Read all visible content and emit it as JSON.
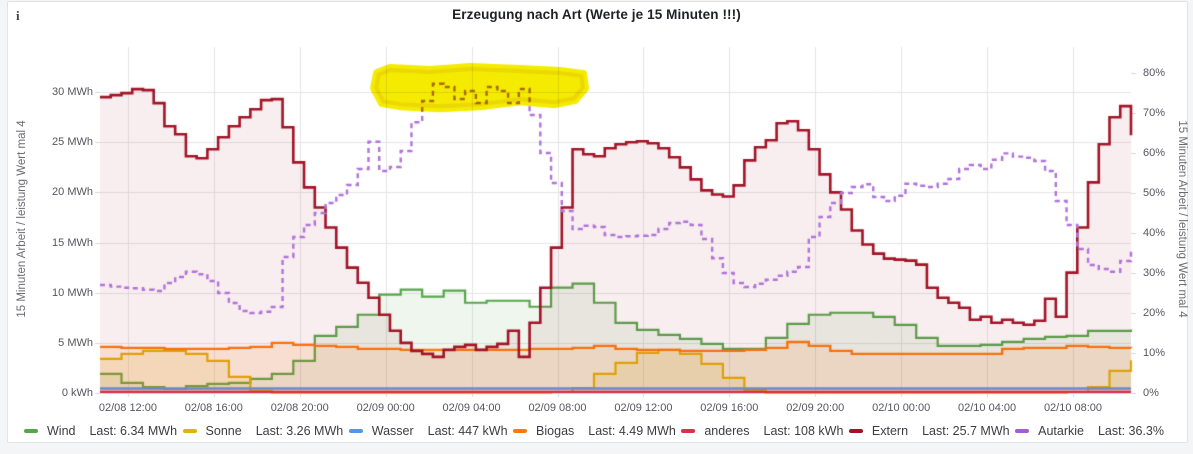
{
  "panel": {
    "title": "Erzeugung nach Art (Werte je 15 Minuten !!!)",
    "info_icon": "i"
  },
  "chart_data": {
    "type": "line",
    "title": "Erzeugung nach Art (Werte je 15 Minuten !!!)",
    "grid": true,
    "x_axis": {
      "range_hours": 48,
      "start": "02/08 10:30",
      "end": "02/10 10:30",
      "ticks": [
        {
          "label": "02/08 12:00",
          "t": 1.3
        },
        {
          "label": "02/08 16:00",
          "t": 5.3
        },
        {
          "label": "02/08 20:00",
          "t": 9.3
        },
        {
          "label": "02/09 00:00",
          "t": 13.3
        },
        {
          "label": "02/09 04:00",
          "t": 17.3
        },
        {
          "label": "02/09 08:00",
          "t": 21.3
        },
        {
          "label": "02/09 12:00",
          "t": 25.3
        },
        {
          "label": "02/09 16:00",
          "t": 29.3
        },
        {
          "label": "02/09 20:00",
          "t": 33.3
        },
        {
          "label": "02/10 00:00",
          "t": 37.3
        },
        {
          "label": "02/10 04:00",
          "t": 41.3
        },
        {
          "label": "02/10 08:00",
          "t": 45.3
        }
      ]
    },
    "left_axis": {
      "label": "15 Minuten Arbeit / leistung Wert mal 4",
      "unit": "MWh",
      "max": 34.5,
      "ticks": [
        {
          "label": "0 kWh",
          "value": 0
        },
        {
          "label": "5 MWh",
          "value": 5
        },
        {
          "label": "10 MWh",
          "value": 10
        },
        {
          "label": "15 MWh",
          "value": 15
        },
        {
          "label": "20 MWh",
          "value": 20
        },
        {
          "label": "25 MWh",
          "value": 25
        },
        {
          "label": "30 MWh",
          "value": 30
        }
      ]
    },
    "right_axis": {
      "label": "15 Minuten Arbeit / leistung Wert mal 4",
      "unit": "%",
      "max": 86.5,
      "ticks": [
        {
          "label": "0%",
          "value": 0
        },
        {
          "label": "10%",
          "value": 10
        },
        {
          "label": "20%",
          "value": 20
        },
        {
          "label": "30%",
          "value": 30
        },
        {
          "label": "40%",
          "value": 40
        },
        {
          "label": "50%",
          "value": 50
        },
        {
          "label": "60%",
          "value": 60
        },
        {
          "label": "70%",
          "value": 70
        },
        {
          "label": "80%",
          "value": 80
        }
      ]
    },
    "series": [
      {
        "name": "Wind",
        "axis": "left",
        "color": "#56A64B",
        "fill_color": "rgba(86,166,75,0.10)",
        "width": 2.2,
        "step_hours": 1,
        "values": [
          1.9,
          1.0,
          0.6,
          0.4,
          0.7,
          0.9,
          1.0,
          1.4,
          1.9,
          3.2,
          5.7,
          6.6,
          7.8,
          9.8,
          10.3,
          9.6,
          10.2,
          9.0,
          9.2,
          9.2,
          8.6,
          10.5,
          10.9,
          9.0,
          7.0,
          6.3,
          5.8,
          5.4,
          4.9,
          4.4,
          4.4,
          5.5,
          6.9,
          7.8,
          8.0,
          8.0,
          7.6,
          6.8,
          5.5,
          4.7,
          4.7,
          4.8,
          5.1,
          5.4,
          5.6,
          5.7,
          6.2,
          6.2,
          6.34
        ]
      },
      {
        "name": "Sonne",
        "axis": "left",
        "color": "#E0B400",
        "fill_color": "rgba(224,180,0,0.12)",
        "width": 2.2,
        "step_hours": 1,
        "values": [
          3.4,
          3.9,
          4.2,
          4.2,
          3.9,
          3.2,
          1.6,
          0.2,
          0,
          0,
          0,
          0,
          0,
          0,
          0,
          0,
          0,
          0,
          0,
          0,
          0,
          0.1,
          0.5,
          1.9,
          3.0,
          4.0,
          4.3,
          3.9,
          2.9,
          1.5,
          0.3,
          0,
          0,
          0,
          0,
          0,
          0,
          0,
          0,
          0,
          0,
          0,
          0,
          0,
          0,
          0.1,
          0.6,
          2.2,
          3.26
        ]
      },
      {
        "name": "Wasser",
        "axis": "left",
        "color": "#5794F2",
        "fill_color": "rgba(87,148,242,0.10)",
        "width": 2.4,
        "step_hours": 48,
        "values": [
          0.45,
          0.45
        ]
      },
      {
        "name": "Biogas",
        "axis": "left",
        "color": "#FF780A",
        "fill_color": "rgba(255,120,10,0.13)",
        "width": 2.4,
        "step_hours": 1,
        "values": [
          4.6,
          4.5,
          4.5,
          4.4,
          4.4,
          4.4,
          4.5,
          4.6,
          5.0,
          4.8,
          4.7,
          4.6,
          4.4,
          4.4,
          4.3,
          4.3,
          4.3,
          4.3,
          4.3,
          4.3,
          4.4,
          4.4,
          4.5,
          4.7,
          4.4,
          4.3,
          4.3,
          4.2,
          4.2,
          4.2,
          4.3,
          4.5,
          5.1,
          4.7,
          4.2,
          3.9,
          3.9,
          3.9,
          3.9,
          3.9,
          3.9,
          3.9,
          4.4,
          4.5,
          4.5,
          4.7,
          4.6,
          4.5,
          4.49
        ]
      },
      {
        "name": "anderes",
        "axis": "left",
        "color": "#E02F44",
        "fill_color": "rgba(224,47,68,0.10)",
        "width": 2.2,
        "step_hours": 48,
        "values": [
          0.11,
          0.11
        ]
      },
      {
        "name": "Extern",
        "axis": "left",
        "color": "#A11426",
        "fill_color": "rgba(161,20,38,0.075)",
        "width": 2.6,
        "step_hours": 0.5,
        "values": [
          29.5,
          29.7,
          29.9,
          30.3,
          30.2,
          28.9,
          26.6,
          25.8,
          23.6,
          23.4,
          24.3,
          25.5,
          26.6,
          27.5,
          28.3,
          29.2,
          29.3,
          26.5,
          23.0,
          20.5,
          18.5,
          16.5,
          14.5,
          12.5,
          11.0,
          9.5,
          7.8,
          6.2,
          5.0,
          4.2,
          3.9,
          3.6,
          4.3,
          4.6,
          4.8,
          4.3,
          4.6,
          4.9,
          6.2,
          3.6,
          7.0,
          10.5,
          14.5,
          18.5,
          24.3,
          23.8,
          23.6,
          24.4,
          24.8,
          25.0,
          25.1,
          24.9,
          24.4,
          23.5,
          22.5,
          21.3,
          20.2,
          19.8,
          19.6,
          20.7,
          23.2,
          24.5,
          25.2,
          26.9,
          27.1,
          26.2,
          24.3,
          21.8,
          20.0,
          18.3,
          16.2,
          14.8,
          13.9,
          13.4,
          13.3,
          13.2,
          12.8,
          10.5,
          9.5,
          9.0,
          8.5,
          7.3,
          7.6,
          7.0,
          7.3,
          7.0,
          6.8,
          7.2,
          9.4,
          7.6,
          12.0,
          16.5,
          21.0,
          24.8,
          27.5,
          28.6,
          25.7
        ]
      },
      {
        "name": "Autarkie",
        "axis": "right",
        "color": "#B073D9",
        "fill_color": null,
        "width": 2.4,
        "step_hours": 0.5,
        "dash": [
          5,
          4
        ],
        "values": [
          27.0,
          26.6,
          26.3,
          26.2,
          25.8,
          25.5,
          27.5,
          29.0,
          30.3,
          29.7,
          28.0,
          25.0,
          22.5,
          20.5,
          20.0,
          20.3,
          21.5,
          34.0,
          39.0,
          42.0,
          45.0,
          47.5,
          49.5,
          52.0,
          56.0,
          62.8,
          55.5,
          56.5,
          60.5,
          67.7,
          73.0,
          77.3,
          76.5,
          73.5,
          75.5,
          72.5,
          76.5,
          75.5,
          72.5,
          76.0,
          69.5,
          60.0,
          52.5,
          45.5,
          41.0,
          41.8,
          41.5,
          39.5,
          39.0,
          39.2,
          39.3,
          39.5,
          41.0,
          42.5,
          42.8,
          42.0,
          38.5,
          33.7,
          30.0,
          27.5,
          26.5,
          27.3,
          28.3,
          29.3,
          30.3,
          31.5,
          39.0,
          44.0,
          47.5,
          50.0,
          51.5,
          52.2,
          49.0,
          48.0,
          49.3,
          52.3,
          51.8,
          51.5,
          52.3,
          53.5,
          56.0,
          57.0,
          56.0,
          58.3,
          59.9,
          59.1,
          58.8,
          58.0,
          55.5,
          48.0,
          42.0,
          36.0,
          32.0,
          31.0,
          30.3,
          33.0,
          36.3
        ]
      }
    ],
    "highlight": {
      "name": "yellow-marker-annotation",
      "color": "#F5EB00",
      "points": [
        [
          12.76,
          30.4
        ],
        [
          12.9,
          31.9
        ],
        [
          13.5,
          32.4
        ],
        [
          15.36,
          32.2
        ],
        [
          17.22,
          32.5
        ],
        [
          19.55,
          32.3
        ],
        [
          21.41,
          32.1
        ],
        [
          22.49,
          31.8
        ],
        [
          22.58,
          30.4
        ],
        [
          22.11,
          29.2
        ],
        [
          21.18,
          28.8
        ],
        [
          19.55,
          29.1
        ],
        [
          17.69,
          28.6
        ],
        [
          15.83,
          28.4
        ],
        [
          13.97,
          28.6
        ],
        [
          13.13,
          28.9
        ]
      ]
    },
    "colors": {
      "grid": "#e5e5e9",
      "axis_line": "#d8d8dc",
      "tick_text": "#55565e",
      "axis_title_text": "#6b6c73"
    }
  },
  "legend": {
    "items": [
      {
        "label": "Wind",
        "last": "Last: 6.34 MWh",
        "color": "#56A64B"
      },
      {
        "label": "Sonne",
        "last": "Last: 3.26 MWh",
        "color": "#E0B400"
      },
      {
        "label": "Wasser",
        "last": "Last: 447 kWh",
        "color": "#5794F2"
      },
      {
        "label": "Biogas",
        "last": "Last: 4.49 MWh",
        "color": "#FF780A"
      },
      {
        "label": "anderes",
        "last": "Last: 108 kWh",
        "color": "#E02F44"
      },
      {
        "label": "Extern",
        "last": "Last: 25.7 MWh",
        "color": "#A11426"
      },
      {
        "label": "Autarkie",
        "last": "Last: 36.3%",
        "color": "#A35FD1"
      }
    ]
  }
}
